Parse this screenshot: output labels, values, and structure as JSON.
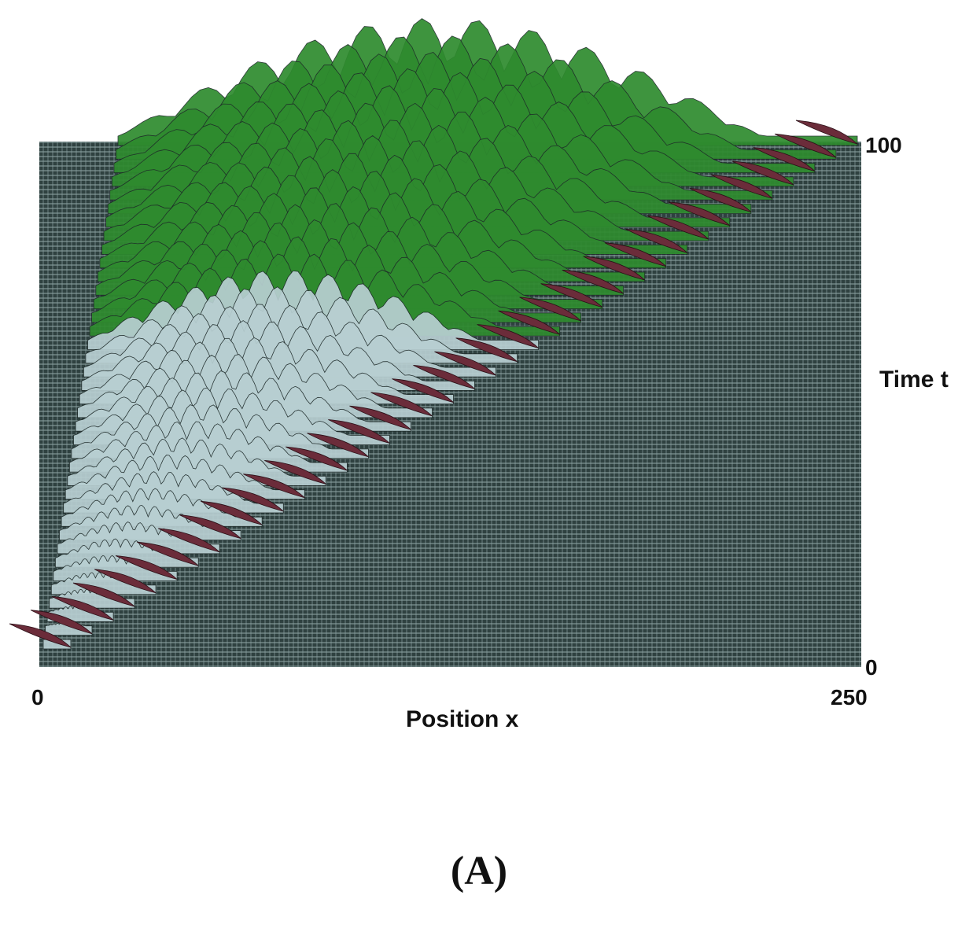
{
  "chart_data": {
    "type": "area",
    "view": "3d-waterfall",
    "xlabel": "Position x",
    "ylabel": "Time t",
    "xlim": [
      0,
      250
    ],
    "ylim": [
      0,
      100
    ],
    "x_ticks": [
      "0",
      "250"
    ],
    "y_ticks": [
      "0",
      "100"
    ],
    "grid": true,
    "series": [
      {
        "color": "#6b2c3a",
        "values": []
      },
      {
        "color": "#b8cfd2",
        "values": []
      },
      {
        "color": "#2e8b2e",
        "values": []
      }
    ],
    "base_color": "#3e5150"
  },
  "panel_label": "(A)"
}
